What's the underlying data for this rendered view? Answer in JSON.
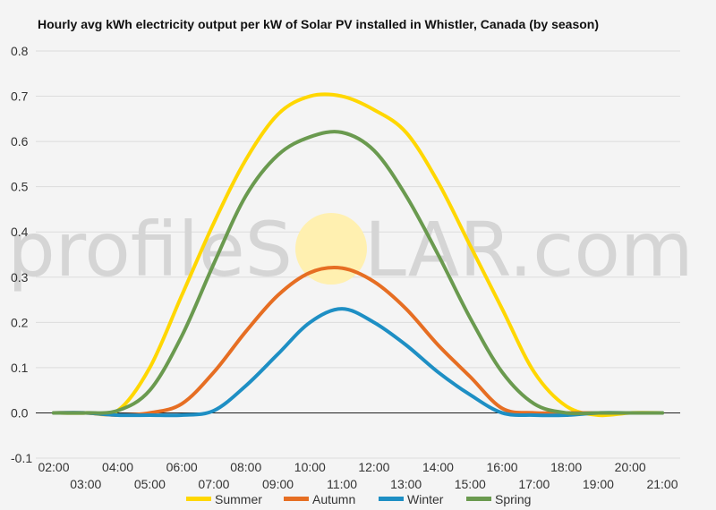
{
  "chart_data": {
    "type": "line",
    "title": "Hourly avg kWh electricity output per kW of Solar PV installed in Whistler, Canada (by season)",
    "xlabel": "",
    "ylabel": "",
    "x_hours": [
      2,
      3,
      4,
      5,
      6,
      7,
      8,
      9,
      10,
      11,
      12,
      13,
      14,
      15,
      16,
      17,
      18,
      19,
      20,
      21
    ],
    "x_tick_labels": [
      "02:00",
      "03:00",
      "04:00",
      "05:00",
      "06:00",
      "07:00",
      "08:00",
      "09:00",
      "10:00",
      "11:00",
      "12:00",
      "13:00",
      "14:00",
      "15:00",
      "16:00",
      "17:00",
      "18:00",
      "19:00",
      "20:00",
      "21:00"
    ],
    "ylim": [
      -0.1,
      0.8
    ],
    "y_ticks": [
      -0.1,
      0.0,
      0.1,
      0.2,
      0.3,
      0.4,
      0.5,
      0.6,
      0.7,
      0.8
    ],
    "y_tick_labels": [
      "-0.1",
      "0.0",
      "0.1",
      "0.2",
      "0.3",
      "0.4",
      "0.5",
      "0.6",
      "0.7",
      "0.8"
    ],
    "grid": true,
    "legend_position": "bottom",
    "watermark": {
      "left": "profileS",
      "right": "LAR.com",
      "sun_color": "#fff0b0"
    },
    "series": [
      {
        "name": "Summer",
        "color": "#ffd700",
        "values": [
          0.0,
          0.0,
          0.005,
          0.1,
          0.26,
          0.42,
          0.56,
          0.66,
          0.7,
          0.7,
          0.67,
          0.62,
          0.51,
          0.37,
          0.23,
          0.09,
          0.015,
          -0.005,
          0.0,
          0.0
        ]
      },
      {
        "name": "Autumn",
        "color": "#e66e23",
        "values": [
          0.0,
          0.0,
          -0.005,
          0.0,
          0.02,
          0.09,
          0.18,
          0.26,
          0.31,
          0.32,
          0.29,
          0.23,
          0.15,
          0.08,
          0.01,
          0.0,
          0.0,
          0.0,
          0.0,
          0.0
        ]
      },
      {
        "name": "Winter",
        "color": "#1e8fc4",
        "values": [
          0.0,
          0.0,
          -0.005,
          -0.005,
          -0.005,
          0.005,
          0.06,
          0.13,
          0.2,
          0.23,
          0.2,
          0.15,
          0.09,
          0.04,
          0.0,
          -0.005,
          -0.005,
          0.0,
          0.0,
          0.0
        ]
      },
      {
        "name": "Spring",
        "color": "#6a9a4f",
        "values": [
          0.0,
          0.0,
          0.005,
          0.05,
          0.17,
          0.33,
          0.48,
          0.57,
          0.61,
          0.62,
          0.58,
          0.48,
          0.35,
          0.21,
          0.09,
          0.02,
          0.0,
          0.0,
          0.0,
          0.0
        ]
      }
    ]
  }
}
